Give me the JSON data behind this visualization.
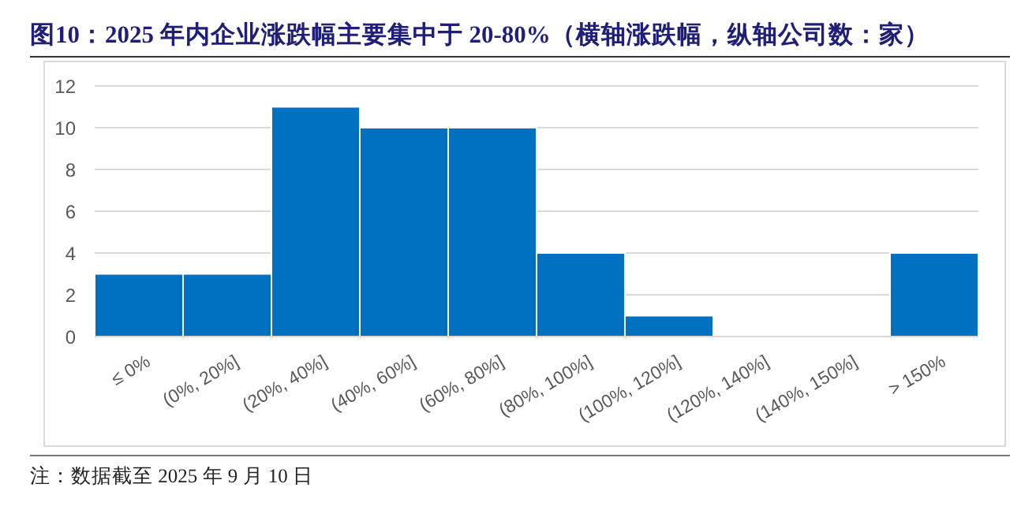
{
  "chart_data": {
    "type": "bar",
    "title": "图10：2025 年内企业涨跌幅主要集中于 20-80%（横轴涨跌幅，纵轴公司数：家）",
    "categories": [
      "≤ 0%",
      "(0%, 20%]",
      "(20%, 40%]",
      "(40%, 60%]",
      "(60%, 80%]",
      "(80%, 100%]",
      "(100%, 120%]",
      "(120%, 140%]",
      "(140%, 150%]",
      "> 150%"
    ],
    "values": [
      3,
      3,
      11,
      10,
      10,
      4,
      1,
      0,
      0,
      4
    ],
    "color": "#0070c0",
    "ylim": [
      0,
      12
    ],
    "yticks": [
      0,
      2,
      4,
      6,
      8,
      10,
      12
    ],
    "grid": "y",
    "annotations": [
      "注：数据截至 2025 年 9 月 10 日"
    ]
  }
}
